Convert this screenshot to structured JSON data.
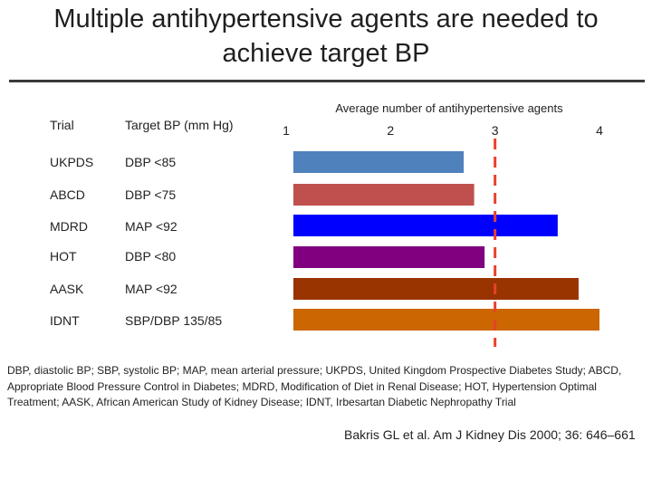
{
  "title": "Multiple antihypertensive agents are needed to achieve target BP",
  "table": {
    "col_trial": "Trial",
    "col_target": "Target BP (mm Hg)",
    "rows": [
      {
        "trial": "UKPDS",
        "target": "DBP <85"
      },
      {
        "trial": "ABCD",
        "target": "DBP <75"
      },
      {
        "trial": "MDRD",
        "target": "MAP <92"
      },
      {
        "trial": "HOT",
        "target": "DBP <80"
      },
      {
        "trial": "AASK",
        "target": "MAP <92"
      },
      {
        "trial": "IDNT",
        "target": "SBP/DBP 135/85"
      }
    ]
  },
  "chart_data": {
    "type": "bar",
    "orientation": "horizontal",
    "title": "Average number of antihypertensive agents",
    "categories": [
      "UKPDS",
      "ABCD",
      "MDRD",
      "HOT",
      "AASK",
      "IDNT"
    ],
    "values": [
      2.7,
      2.8,
      3.6,
      2.9,
      3.8,
      4.0
    ],
    "colors": [
      "#4f81bd",
      "#c0504d",
      "#0000ff",
      "#800080",
      "#993300",
      "#cc6600"
    ],
    "xlim": [
      1,
      4
    ],
    "xticks": [
      "1",
      "2",
      "3",
      "4"
    ],
    "reference_line": {
      "value": 3,
      "style": "dashed",
      "color": "#e8412c"
    }
  },
  "footnote": "DBP, diastolic BP; SBP, systolic BP; MAP, mean arterial pressure; UKPDS, United Kingdom Prospective Diabetes Study; ABCD, Appropriate Blood Pressure Control in Diabetes; MDRD, Modification of Diet in Renal Disease; HOT, Hypertension Optimal Treatment; AASK, African American Study of Kidney Disease; IDNT, Irbesartan Diabetic Nephropathy Trial",
  "citation": "Bakris GL et al. Am J Kidney Dis 2000; 36: 646–661"
}
